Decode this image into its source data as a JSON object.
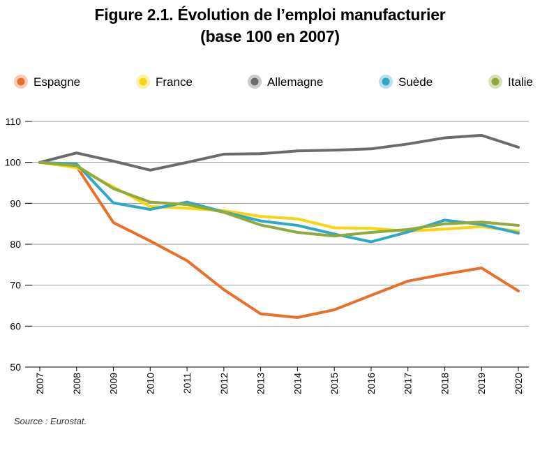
{
  "header": {
    "title_line1": "Figure 2.1. Évolution de l’emploi manufacturier",
    "title_line2": "(base 100 en 2007)"
  },
  "footer": {
    "source": "Source : Eurostat."
  },
  "chart_data": {
    "type": "line",
    "title": "Figure 2.1. Évolution de l’emploi manufacturier (base 100 en 2007)",
    "xlabel": "",
    "ylabel": "",
    "x": [
      "2007",
      "2008",
      "2009",
      "2010",
      "2011",
      "2012",
      "2013",
      "2014",
      "2015",
      "2016",
      "2017",
      "2018",
      "2019",
      "2020"
    ],
    "ylim": [
      50,
      110
    ],
    "yticks": [
      50,
      60,
      70,
      80,
      90,
      100,
      110
    ],
    "grid": true,
    "legend_position": "top",
    "series": [
      {
        "name": "Espagne",
        "color": "#e8702a",
        "values": [
          100,
          99.0,
          85.3,
          80.8,
          76.0,
          68.9,
          63.0,
          62.1,
          64.0,
          67.5,
          71.0,
          72.7,
          74.2,
          68.6
        ]
      },
      {
        "name": "France",
        "color": "#f8d50f",
        "values": [
          100,
          98.7,
          94.0,
          89.2,
          88.8,
          88.2,
          86.8,
          86.2,
          84.0,
          83.9,
          83.2,
          83.7,
          84.3,
          83.2
        ]
      },
      {
        "name": "Allemagne",
        "color": "#6b6b6b",
        "values": [
          100,
          102.3,
          100.3,
          98.1,
          100.0,
          102.0,
          102.1,
          102.8,
          103.0,
          103.3,
          104.5,
          106.0,
          106.6,
          103.7
        ]
      },
      {
        "name": "Suède",
        "color": "#2fa8c8",
        "values": [
          100,
          99.6,
          90.1,
          88.5,
          90.3,
          87.9,
          85.7,
          84.6,
          82.5,
          80.6,
          83.0,
          85.9,
          84.8,
          82.7
        ]
      },
      {
        "name": "Italie",
        "color": "#8fa93b",
        "values": [
          100,
          99.2,
          93.6,
          90.3,
          89.7,
          87.8,
          84.7,
          82.9,
          82.0,
          82.9,
          83.6,
          85.0,
          85.4,
          84.6
        ]
      }
    ]
  }
}
